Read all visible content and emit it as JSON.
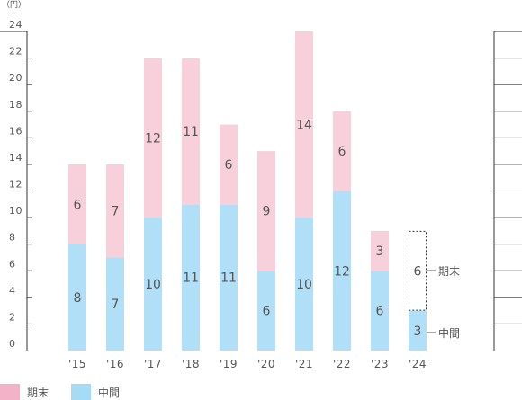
{
  "chart_data": {
    "type": "bar",
    "stacked": true,
    "y_unit": "（円）",
    "ylim": [
      0,
      24
    ],
    "yticks": [
      "0",
      "2",
      "4",
      "6",
      "8",
      "10",
      "12",
      "14",
      "16",
      "18",
      "20",
      "22",
      "24"
    ],
    "categories": [
      "'15",
      "'16",
      "'17",
      "'18",
      "'19",
      "'20",
      "'21",
      "'22",
      "'23",
      "'24"
    ],
    "series": [
      {
        "name": "中間",
        "color": "#b1dff7",
        "values": [
          8,
          7,
          10,
          11,
          11,
          6,
          10,
          12,
          6,
          3
        ]
      },
      {
        "name": "期末",
        "color": "#f8d0dc",
        "values": [
          6,
          7,
          12,
          11,
          6,
          9,
          14,
          6,
          3,
          6
        ],
        "forecast_last": true
      }
    ],
    "annotations": {
      "end": "期末",
      "interim": "中間"
    },
    "legend": {
      "position": "bottom-left",
      "items": [
        {
          "label": "期末",
          "color": "#f3b2c8"
        },
        {
          "label": "中間",
          "color": "#a6dbf6"
        }
      ]
    },
    "grid": false
  }
}
